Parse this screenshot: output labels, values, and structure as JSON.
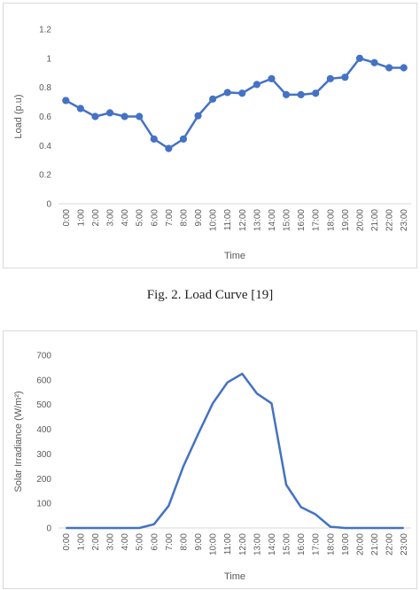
{
  "caption": "Fig. 2.   Load Curve [19]",
  "chart_data": [
    {
      "type": "line",
      "markers": true,
      "xlabel": "Time",
      "ylabel": "Load (p.u)",
      "ylim": [
        0,
        1.2
      ],
      "yticks": [
        "0",
        "0.2",
        "0.4",
        "0.6",
        "0.8",
        "1",
        "1.2"
      ],
      "grid": false,
      "color": "#4472c4",
      "categories": [
        "0:00",
        "1:00",
        "2:00",
        "3:00",
        "4:00",
        "5:00",
        "6:00",
        "7:00",
        "8:00",
        "9:00",
        "10:00",
        "11:00",
        "12:00",
        "13:00",
        "14:00",
        "15:00",
        "16:00",
        "17:00",
        "18:00",
        "19:00",
        "20:00",
        "21:00",
        "22:00",
        "23:00"
      ],
      "values": [
        0.71,
        0.655,
        0.6,
        0.625,
        0.6,
        0.6,
        0.445,
        0.38,
        0.445,
        0.605,
        0.72,
        0.765,
        0.76,
        0.82,
        0.86,
        0.75,
        0.75,
        0.76,
        0.86,
        0.87,
        1.0,
        0.97,
        0.935,
        0.935
      ]
    },
    {
      "type": "line",
      "markers": false,
      "xlabel": "Time",
      "ylabel": "Solar Irradiance (W/m²)",
      "ylim": [
        0,
        700
      ],
      "yticks": [
        "0",
        "100",
        "200",
        "300",
        "400",
        "500",
        "600",
        "700"
      ],
      "grid": false,
      "color": "#4472c4",
      "categories": [
        "0:00",
        "1:00",
        "2:00",
        "3:00",
        "4:00",
        "5:00",
        "6:00",
        "7:00",
        "8:00",
        "9:00",
        "10:00",
        "11:00",
        "12:00",
        "13:00",
        "14:00",
        "15:00",
        "16:00",
        "17:00",
        "18:00",
        "19:00",
        "20:00",
        "21:00",
        "22:00",
        "23:00"
      ],
      "values": [
        0,
        0,
        0,
        0,
        0,
        0,
        15,
        90,
        250,
        380,
        505,
        590,
        625,
        545,
        505,
        175,
        85,
        55,
        5,
        0,
        0,
        0,
        0,
        0
      ]
    }
  ]
}
